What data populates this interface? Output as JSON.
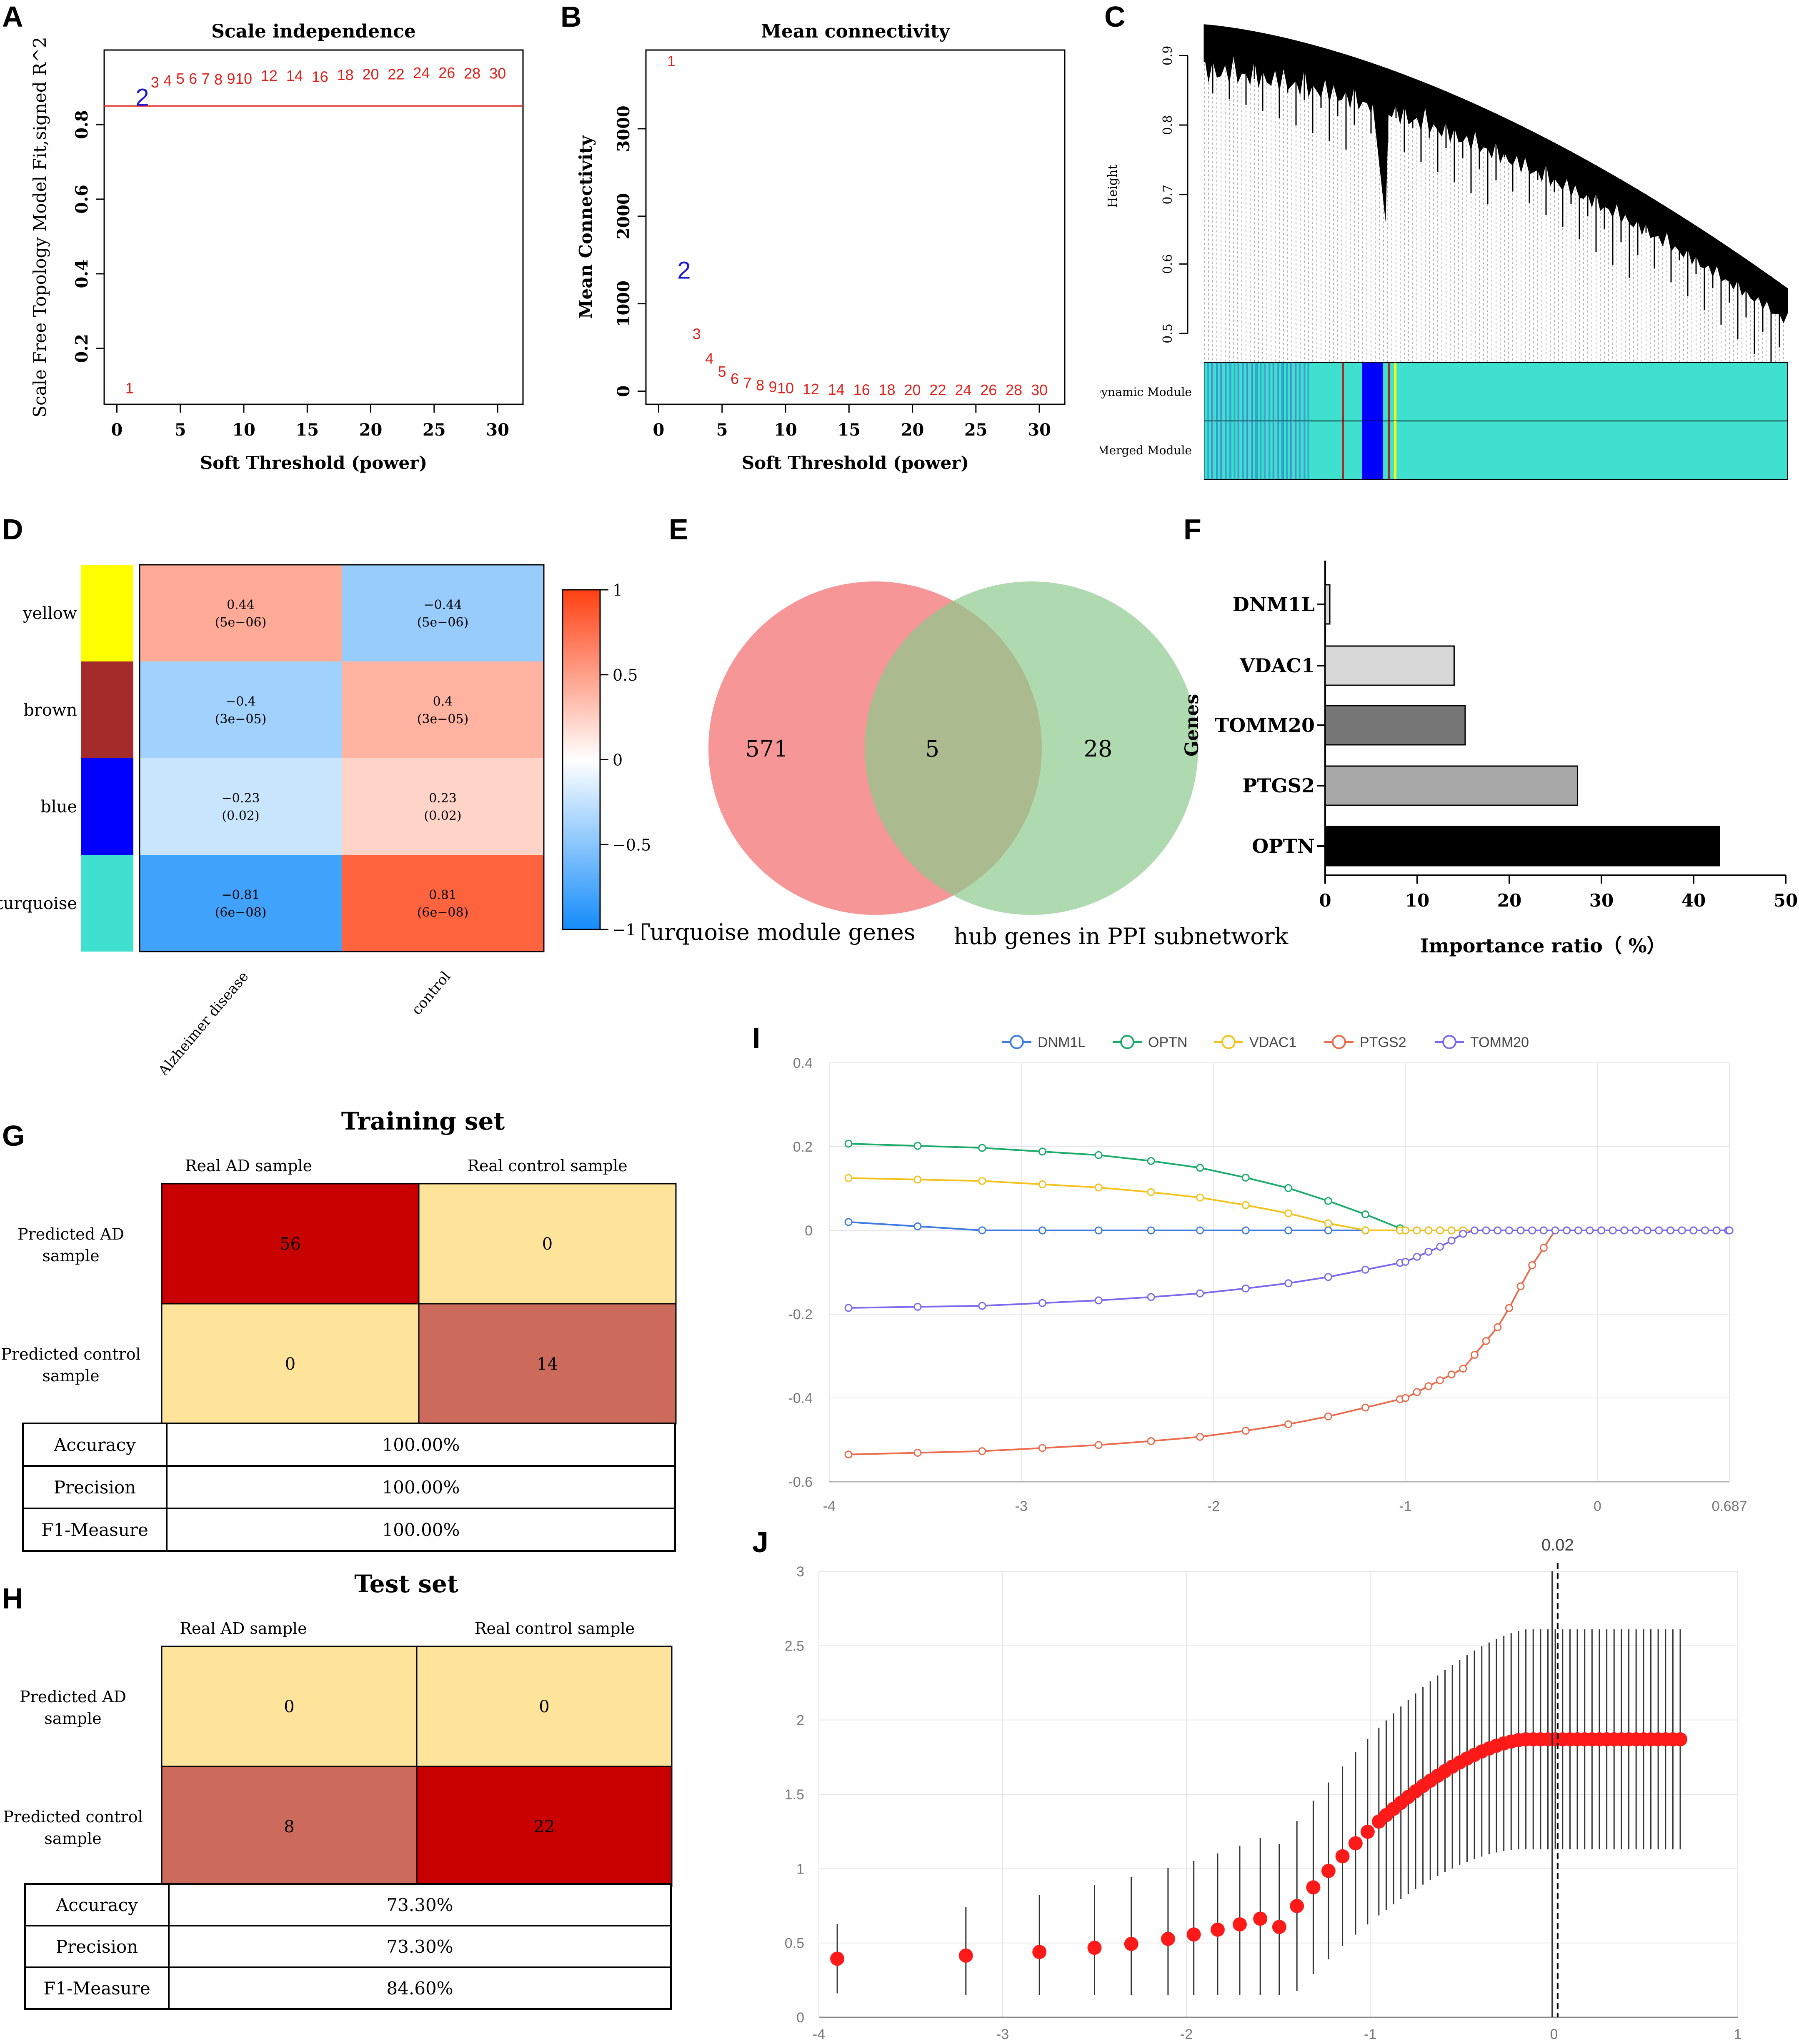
{
  "panel_labels": {
    "A": "A",
    "B": "B",
    "C": "C",
    "D": "D",
    "E": "E",
    "F": "F",
    "G": "G",
    "H": "H",
    "I": "I",
    "J": "J"
  },
  "chart_data": [
    {
      "id": "A",
      "type": "scatter",
      "title": "Scale independence",
      "xlabel": "Soft Threshold (power)",
      "ylabel": "Scale Free Topology Model Fit,signed R^2",
      "xlim": [
        -1,
        32
      ],
      "ylim": [
        0.05,
        1.0
      ],
      "xticks": [
        0,
        5,
        10,
        15,
        20,
        25,
        30
      ],
      "yticks": [
        0.2,
        0.4,
        0.6,
        0.8
      ],
      "cutoff_line": 0.85,
      "points": [
        {
          "label": "1",
          "x": 1,
          "y": 0.09
        },
        {
          "label": "2",
          "x": 2,
          "y": 0.868
        },
        {
          "label": "3",
          "x": 3,
          "y": 0.91
        },
        {
          "label": "4",
          "x": 4,
          "y": 0.915
        },
        {
          "label": "5",
          "x": 5,
          "y": 0.92
        },
        {
          "label": "6",
          "x": 6,
          "y": 0.92
        },
        {
          "label": "7",
          "x": 7,
          "y": 0.92
        },
        {
          "label": "8",
          "x": 8,
          "y": 0.918
        },
        {
          "label": "9",
          "x": 9,
          "y": 0.92
        },
        {
          "label": "10",
          "x": 10,
          "y": 0.92
        },
        {
          "label": "12",
          "x": 12,
          "y": 0.928
        },
        {
          "label": "14",
          "x": 14,
          "y": 0.928
        },
        {
          "label": "16",
          "x": 16,
          "y": 0.925
        },
        {
          "label": "18",
          "x": 18,
          "y": 0.93
        },
        {
          "label": "20",
          "x": 20,
          "y": 0.932
        },
        {
          "label": "22",
          "x": 22,
          "y": 0.932
        },
        {
          "label": "24",
          "x": 24,
          "y": 0.936
        },
        {
          "label": "26",
          "x": 26,
          "y": 0.936
        },
        {
          "label": "28",
          "x": 28,
          "y": 0.934
        },
        {
          "label": "30",
          "x": 30,
          "y": 0.934
        }
      ]
    },
    {
      "id": "B",
      "type": "scatter",
      "title": "Mean connectivity",
      "xlabel": "Soft Threshold (power)",
      "ylabel": "Mean Connectivity",
      "xlim": [
        -1,
        32
      ],
      "ylim": [
        -150,
        3900
      ],
      "xticks": [
        0,
        5,
        10,
        15,
        20,
        25,
        30
      ],
      "yticks": [
        0,
        1000,
        2000,
        3000
      ],
      "points": [
        {
          "label": "1",
          "x": 1,
          "y": 3760
        },
        {
          "label": "2",
          "x": 2,
          "y": 1360
        },
        {
          "label": "3",
          "x": 3,
          "y": 640
        },
        {
          "label": "4",
          "x": 4,
          "y": 360
        },
        {
          "label": "5",
          "x": 5,
          "y": 210
        },
        {
          "label": "6",
          "x": 6,
          "y": 130
        },
        {
          "label": "7",
          "x": 7,
          "y": 80
        },
        {
          "label": "8",
          "x": 8,
          "y": 55
        },
        {
          "label": "9",
          "x": 9,
          "y": 35
        },
        {
          "label": "10",
          "x": 10,
          "y": 22
        },
        {
          "label": "12",
          "x": 12,
          "y": 10
        },
        {
          "label": "14",
          "x": 14,
          "y": 5
        },
        {
          "label": "16",
          "x": 16,
          "y": 3
        },
        {
          "label": "18",
          "x": 18,
          "y": 2
        },
        {
          "label": "20",
          "x": 20,
          "y": 1
        },
        {
          "label": "22",
          "x": 22,
          "y": 1
        },
        {
          "label": "24",
          "x": 24,
          "y": 0
        },
        {
          "label": "26",
          "x": 26,
          "y": 0
        },
        {
          "label": "28",
          "x": 28,
          "y": 0
        },
        {
          "label": "30",
          "x": 30,
          "y": 0
        }
      ]
    },
    {
      "id": "C",
      "type": "dendrogram",
      "ylabel": "Height",
      "ylim": [
        0.5,
        0.95
      ],
      "yticks": [
        0.5,
        0.6,
        0.7,
        0.8,
        0.9
      ],
      "rows": [
        "Dynamic Module",
        "Merged Module"
      ],
      "colors": {
        "turquoise": "#40e0d0",
        "blue": "#0000ff",
        "brown": "#a52a2a",
        "yellow": "#ffff00"
      }
    },
    {
      "id": "D",
      "type": "heatmap",
      "modules": [
        "yellow",
        "brown",
        "blue",
        "turquoise"
      ],
      "module_colors": [
        "#ffff00",
        "#a52a2a",
        "#0000ff",
        "#40e0d0"
      ],
      "traits": [
        "Alzheimer disease",
        "control"
      ],
      "cells": [
        [
          {
            "r": 0.44,
            "label": "0.44",
            "p": "(5e−06)"
          },
          {
            "r": -0.44,
            "label": "−0.44",
            "p": "(5e−06)"
          }
        ],
        [
          {
            "r": -0.4,
            "label": "−0.4",
            "p": "(3e−05)"
          },
          {
            "r": 0.4,
            "label": "0.4",
            "p": "(3e−05)"
          }
        ],
        [
          {
            "r": -0.23,
            "label": "−0.23",
            "p": "(0.02)"
          },
          {
            "r": 0.23,
            "label": "0.23",
            "p": "(0.02)"
          }
        ],
        [
          {
            "r": -0.81,
            "label": "−0.81",
            "p": "(6e−08)"
          },
          {
            "r": 0.81,
            "label": "0.81",
            "p": "(6e−08)"
          }
        ]
      ],
      "legend_ticks": [
        "1",
        "0.5",
        "0",
        "−0.5",
        "−1"
      ],
      "legend_values": [
        1,
        0.5,
        0,
        -0.5,
        -1
      ]
    },
    {
      "id": "E",
      "type": "venn",
      "sets": [
        {
          "name": "Turquoise module genes",
          "only": "571",
          "color": "#f47c7c"
        },
        {
          "name": "hub genes in PPI subnetwork",
          "only": "28",
          "color": "#8dc98b"
        }
      ],
      "intersection": "5"
    },
    {
      "id": "F",
      "type": "bar",
      "orientation": "horizontal",
      "categories": [
        "DNM1L",
        "VDAC1",
        "TOMM20",
        "PTGS2",
        "OPTN"
      ],
      "values": [
        0.5,
        14,
        15.2,
        27.4,
        42.8
      ],
      "colors": [
        "#d8d8d8",
        "#d8d8d8",
        "#777777",
        "#a8a8a8",
        "#000000"
      ],
      "xlabel": "Importance ratio（ %）",
      "ylabel": "Genes",
      "xlim": [
        0,
        50
      ],
      "xticks": [
        0,
        10,
        20,
        30,
        40,
        50
      ]
    },
    {
      "id": "I",
      "type": "line",
      "xlim": [
        -4,
        0.687
      ],
      "ylim": [
        -0.6,
        0.4
      ],
      "xticks": [
        -4,
        -3,
        -2,
        -1,
        0,
        0.687
      ],
      "xticklabels": [
        "-4",
        "-3",
        "-2",
        "-1",
        "0",
        "0.687"
      ],
      "yticks": [
        -0.6,
        -0.4,
        -0.2,
        0,
        0.2,
        0.4
      ],
      "yticklabels": [
        "-0.6",
        "-0.4",
        "-0.2",
        "0",
        "0.2",
        "0.4"
      ],
      "series": [
        {
          "name": "DNM1L",
          "color": "#3d7be0",
          "points": [
            [
              -3.9,
              0.02
            ],
            [
              -3.2,
              0.0
            ],
            [
              -2,
              0.0
            ],
            [
              -1,
              0.0
            ],
            [
              0.687,
              0.0
            ]
          ]
        },
        {
          "name": "OPTN",
          "color": "#1aab6a",
          "points": [
            [
              -3.9,
              0.207
            ],
            [
              -3.2,
              0.197
            ],
            [
              -2.5,
              0.177
            ],
            [
              -2.0,
              0.145
            ],
            [
              -1.6,
              0.1
            ],
            [
              -1.3,
              0.055
            ],
            [
              -1.0,
              0.0
            ],
            [
              0.687,
              0.0
            ]
          ]
        },
        {
          "name": "VDAC1",
          "color": "#f3c21b",
          "points": [
            [
              -3.9,
              0.125
            ],
            [
              -3.2,
              0.118
            ],
            [
              -2.5,
              0.1
            ],
            [
              -2.0,
              0.075
            ],
            [
              -1.6,
              0.04
            ],
            [
              -1.3,
              0.005
            ],
            [
              -1.2,
              0.0
            ],
            [
              0.687,
              0.0
            ]
          ]
        },
        {
          "name": "PTGS2",
          "color": "#ec6b4d",
          "points": [
            [
              -3.9,
              -0.535
            ],
            [
              -3.2,
              -0.527
            ],
            [
              -2.5,
              -0.51
            ],
            [
              -2.0,
              -0.49
            ],
            [
              -1.5,
              -0.455
            ],
            [
              -1.0,
              -0.4
            ],
            [
              -0.7,
              -0.33
            ],
            [
              -0.5,
              -0.22
            ],
            [
              -0.35,
              -0.09
            ],
            [
              -0.22,
              0.0
            ],
            [
              0.687,
              0.0
            ]
          ]
        },
        {
          "name": "TOMM20",
          "color": "#7b68ee",
          "points": [
            [
              -3.9,
              -0.185
            ],
            [
              -3.2,
              -0.18
            ],
            [
              -2.5,
              -0.165
            ],
            [
              -2.0,
              -0.148
            ],
            [
              -1.5,
              -0.12
            ],
            [
              -1.0,
              -0.075
            ],
            [
              -0.8,
              -0.035
            ],
            [
              -0.67,
              0.0
            ],
            [
              0.687,
              0.0
            ]
          ]
        }
      ]
    },
    {
      "id": "J",
      "type": "scatter",
      "xlim": [
        -4,
        1
      ],
      "ylim": [
        0,
        3
      ],
      "xticks": [
        -4,
        -3,
        -2,
        -1,
        0,
        1
      ],
      "xticklabels": [
        "-4",
        "-3",
        "-2",
        "-1",
        "0",
        "1"
      ],
      "yticks": [
        0,
        0.5,
        1,
        1.5,
        2,
        2.5,
        3
      ],
      "yticklabels": [
        "0",
        "0.5",
        "1",
        "1.5",
        "2",
        "2.5",
        "3"
      ],
      "vline_label": "0.02",
      "vline_x": 0.02,
      "vline_solid_x": -0.01,
      "point_color": "#ff1a1a"
    }
  ],
  "tables": {
    "training": {
      "title": "Training set",
      "col_headers": [
        "Real AD sample",
        "Real control sample"
      ],
      "row_headers": [
        "Predicted AD sample",
        "Predicted control sample"
      ],
      "values": [
        [
          "56",
          "0"
        ],
        [
          "0",
          "14"
        ]
      ],
      "metrics": [
        {
          "label": "Accuracy",
          "value": "100.00%"
        },
        {
          "label": "Precision",
          "value": "100.00%"
        },
        {
          "label": "F1-Measure",
          "value": "100.00%"
        }
      ]
    },
    "test": {
      "title": "Test set",
      "col_headers": [
        "Real AD sample",
        "Real control sample"
      ],
      "row_headers": [
        "Predicted AD sample",
        "Predicted control sample"
      ],
      "values": [
        [
          "0",
          "0"
        ],
        [
          "8",
          "22"
        ]
      ],
      "metrics": [
        {
          "label": "Accuracy",
          "value": "73.30%"
        },
        {
          "label": "Precision",
          "value": "73.30%"
        },
        {
          "label": "F1-Measure",
          "value": "84.60%"
        }
      ]
    }
  },
  "matrix_colors": {
    "light": "#fde49a",
    "medium": "#cc6b5c",
    "dark": "#c80000"
  }
}
